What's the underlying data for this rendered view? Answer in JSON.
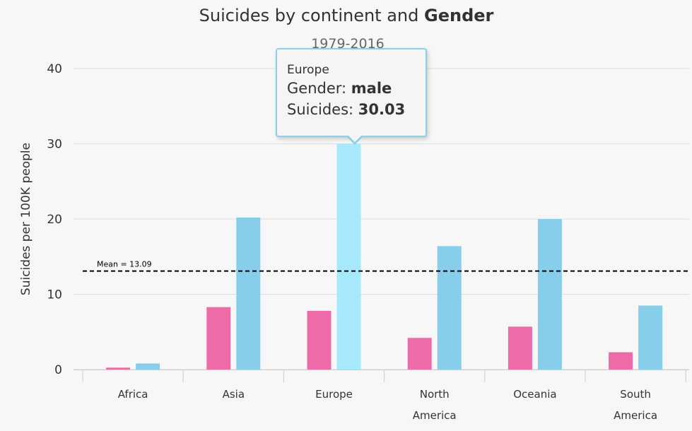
{
  "chart_data": {
    "type": "bar",
    "title_regular": "Suicides by continent and ",
    "title_bold": "Gender",
    "subtitle": "1979-2016",
    "ylabel": "Suicides per 100K people",
    "ylim": [
      0,
      40
    ],
    "yticks": [
      0,
      10,
      20,
      30,
      40
    ],
    "categories": [
      [
        "Africa"
      ],
      [
        "Asia"
      ],
      [
        "Europe"
      ],
      [
        "North",
        "America"
      ],
      [
        "Oceania"
      ],
      [
        "South",
        "America"
      ]
    ],
    "series": [
      {
        "color": "#ec6ba8",
        "values": [
          0.25,
          8.3,
          7.8,
          4.2,
          5.7,
          2.3
        ]
      },
      {
        "color": "#87ceeb",
        "values": [
          0.8,
          20.2,
          30.03,
          16.4,
          20.0,
          8.5
        ]
      }
    ],
    "highlight_color": "#a6e8fc",
    "mean_line": {
      "value": 13.09,
      "label": "Mean = 13.09"
    },
    "grid": true,
    "tooltip": {
      "category": "Europe",
      "gender_label": "Gender: ",
      "gender_value": "male",
      "value_label": "Suicides: ",
      "value": "30.03",
      "series_index": 1,
      "category_index": 2
    }
  }
}
